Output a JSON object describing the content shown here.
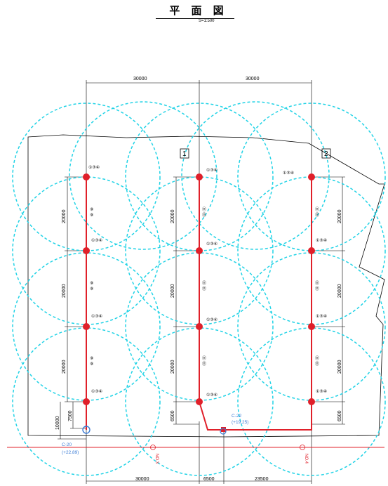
{
  "title": {
    "main": "平 面 図",
    "scale": "S=1:500"
  },
  "dimensions": {
    "top_left": "30000",
    "top_right": "30000",
    "bottom_left": "30000",
    "bottom_mid": "6500",
    "bottom_right": "23500",
    "vertical_20000": "20000",
    "v_10000": "10000",
    "v_7500": "7500",
    "v_6500": "6500"
  },
  "boxes": [
    "1",
    "2"
  ],
  "labels": {
    "top_node": "①③④",
    "mid_pair": "⑨\n⑨",
    "eleven_pair": "⑪\n⑪",
    "c20_name": "C-20",
    "c20_level": "(+22.89)",
    "c22_name": "C-22",
    "c22_level": "(+19.25)",
    "no3": "NO.3",
    "no4": "NO.4"
  },
  "colors": {
    "circle": "#22d3e6",
    "line": "#e0202a",
    "blue": "#3a7bd5",
    "black": "#000000"
  }
}
